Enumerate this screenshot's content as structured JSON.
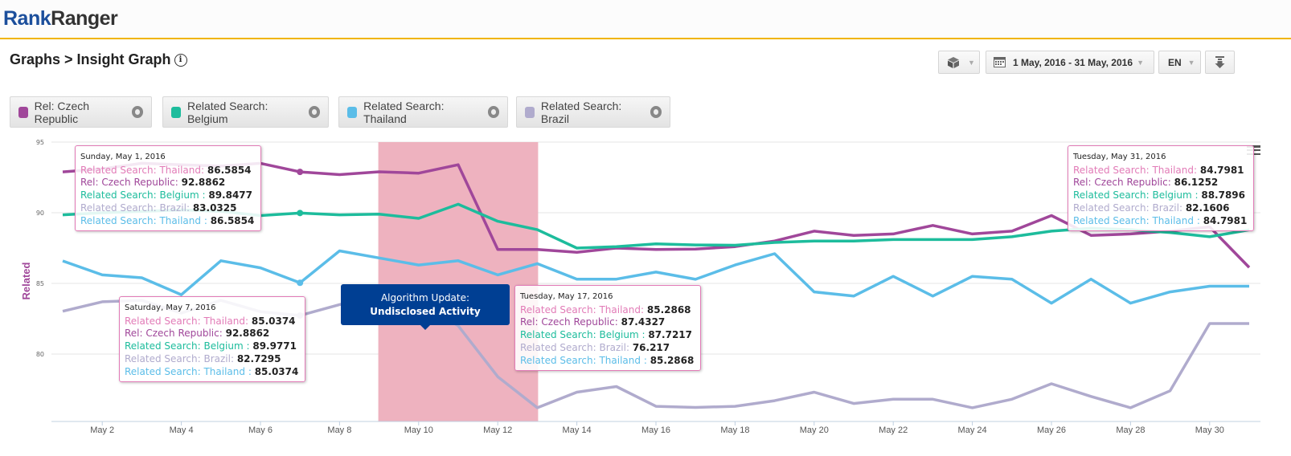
{
  "header": {
    "logo_part1": "Rank",
    "logo_part2": "Ranger"
  },
  "breadcrumb": {
    "text": "Graphs > Insight Graph",
    "info_icon": "info-icon"
  },
  "controls": {
    "widget_icon": "cube-icon",
    "date_icon": "calendar-icon",
    "date_range": "1 May, 2016 - 31 May, 2016",
    "language": "EN",
    "download_icon": "download-icon"
  },
  "legend": [
    {
      "label": "Rel: Czech Republic",
      "color": "#a0479a"
    },
    {
      "label": "Related Search: Belgium",
      "color": "#1dbc9c"
    },
    {
      "label": "Related Search: Thailand",
      "color": "#5bbde8"
    },
    {
      "label": "Related Search: Brazil",
      "color": "#b0abcd"
    }
  ],
  "annotation": {
    "line1": "Algorithm Update:",
    "line2": "Undisclosed Activity",
    "band_color": "#eeb2bf"
  },
  "tooltips": [
    {
      "date": "Sunday, May 1, 2016",
      "rows": [
        {
          "label": "Related Search: Thailand:",
          "value": "86.5854",
          "color": "#e27bb7"
        },
        {
          "label": "Rel: Czech Republic:",
          "value": "92.8862",
          "color": "#a0479a"
        },
        {
          "label": "Related Search: Belgium :",
          "value": "89.8477",
          "color": "#1dbc9c"
        },
        {
          "label": "Related Search: Brazil:",
          "value": "83.0325",
          "color": "#b0abcd"
        },
        {
          "label": "Related Search: Thailand :",
          "value": "86.5854",
          "color": "#5bbde8"
        }
      ]
    },
    {
      "date": "Saturday, May 7, 2016",
      "rows": [
        {
          "label": "Related Search: Thailand:",
          "value": "85.0374",
          "color": "#e27bb7"
        },
        {
          "label": "Rel: Czech Republic:",
          "value": "92.8862",
          "color": "#a0479a"
        },
        {
          "label": "Related Search: Belgium :",
          "value": "89.9771",
          "color": "#1dbc9c"
        },
        {
          "label": "Related Search: Brazil:",
          "value": "82.7295",
          "color": "#b0abcd"
        },
        {
          "label": "Related Search: Thailand :",
          "value": "85.0374",
          "color": "#5bbde8"
        }
      ]
    },
    {
      "date": "Tuesday, May 17, 2016",
      "rows": [
        {
          "label": "Related Search: Thailand:",
          "value": "85.2868",
          "color": "#e27bb7"
        },
        {
          "label": "Rel: Czech Republic:",
          "value": "87.4327",
          "color": "#a0479a"
        },
        {
          "label": "Related Search: Belgium :",
          "value": "87.7217",
          "color": "#1dbc9c"
        },
        {
          "label": "Related Search: Brazil:",
          "value": "76.217",
          "color": "#b0abcd"
        },
        {
          "label": "Related Search: Thailand :",
          "value": "85.2868",
          "color": "#5bbde8"
        }
      ]
    },
    {
      "date": "Tuesday, May 31, 2016",
      "rows": [
        {
          "label": "Related Search: Thailand:",
          "value": "84.7981",
          "color": "#e27bb7"
        },
        {
          "label": "Rel: Czech Republic:",
          "value": "86.1252",
          "color": "#a0479a"
        },
        {
          "label": "Related Search: Belgium :",
          "value": "88.7896",
          "color": "#1dbc9c"
        },
        {
          "label": "Related Search: Brazil:",
          "value": "82.1606",
          "color": "#b0abcd"
        },
        {
          "label": "Related Search: Thailand :",
          "value": "84.7981",
          "color": "#5bbde8"
        }
      ]
    }
  ],
  "chart_data": {
    "type": "line",
    "title": "Insight Graph",
    "xlabel": "",
    "ylabel": "Related",
    "ylim": [
      75.2,
      95
    ],
    "yticks": [
      80,
      85,
      90,
      95
    ],
    "x": [
      1,
      2,
      3,
      4,
      5,
      6,
      7,
      8,
      9,
      10,
      11,
      12,
      13,
      14,
      15,
      16,
      17,
      18,
      19,
      20,
      21,
      22,
      23,
      24,
      25,
      26,
      27,
      28,
      29,
      30,
      31
    ],
    "xticks": [
      {
        "day": 2,
        "label": "May 2"
      },
      {
        "day": 4,
        "label": "May 4"
      },
      {
        "day": 6,
        "label": "May 6"
      },
      {
        "day": 8,
        "label": "May 8"
      },
      {
        "day": 10,
        "label": "May 10"
      },
      {
        "day": 12,
        "label": "May 12"
      },
      {
        "day": 14,
        "label": "May 14"
      },
      {
        "day": 16,
        "label": "May 16"
      },
      {
        "day": 18,
        "label": "May 18"
      },
      {
        "day": 20,
        "label": "May 20"
      },
      {
        "day": 22,
        "label": "May 22"
      },
      {
        "day": 24,
        "label": "May 24"
      },
      {
        "day": 26,
        "label": "May 26"
      },
      {
        "day": 28,
        "label": "May 28"
      },
      {
        "day": 30,
        "label": "May 30"
      }
    ],
    "grid": true,
    "highlight_band": {
      "from_day": 9,
      "to_day": 13
    },
    "series": [
      {
        "name": "Rel: Czech Republic",
        "color": "#a0479a",
        "values": [
          92.89,
          93.1,
          93.5,
          93.4,
          93.3,
          93.5,
          92.89,
          92.7,
          92.9,
          92.8,
          93.4,
          87.4,
          87.4,
          87.2,
          87.5,
          87.4,
          87.43,
          87.6,
          88.0,
          88.7,
          88.4,
          88.5,
          89.1,
          88.5,
          88.7,
          89.8,
          88.4,
          88.5,
          88.7,
          89.0,
          86.13
        ]
      },
      {
        "name": "Related Search: Belgium",
        "color": "#1dbc9c",
        "values": [
          89.85,
          90.0,
          90.1,
          90.2,
          90.1,
          89.8,
          89.98,
          89.85,
          89.9,
          89.6,
          90.6,
          89.4,
          88.8,
          87.5,
          87.6,
          87.8,
          87.72,
          87.7,
          87.9,
          88.0,
          88.0,
          88.1,
          88.1,
          88.1,
          88.3,
          88.7,
          88.9,
          88.8,
          88.6,
          88.3,
          88.79
        ]
      },
      {
        "name": "Related Search: Thailand",
        "color": "#5bbde8",
        "values": [
          86.59,
          85.6,
          85.4,
          84.2,
          86.6,
          86.1,
          85.04,
          87.3,
          86.8,
          86.3,
          86.6,
          85.6,
          86.4,
          85.3,
          85.3,
          85.8,
          85.29,
          86.3,
          87.1,
          84.4,
          84.1,
          85.5,
          84.1,
          85.5,
          85.3,
          83.6,
          85.3,
          83.6,
          84.4,
          84.8,
          84.8
        ]
      },
      {
        "name": "Related Search: Brazil",
        "color": "#b0abcd",
        "values": [
          83.03,
          83.7,
          83.8,
          82.9,
          83.8,
          83.0,
          82.73,
          83.5,
          84.0,
          83.7,
          82.0,
          78.4,
          76.2,
          77.3,
          77.7,
          76.3,
          76.22,
          76.3,
          76.7,
          77.3,
          76.5,
          76.8,
          76.8,
          76.2,
          76.8,
          77.9,
          77.0,
          76.2,
          77.4,
          82.16,
          82.16
        ]
      }
    ],
    "markers": [
      {
        "series": 0,
        "day": 7
      },
      {
        "series": 1,
        "day": 7
      },
      {
        "series": 2,
        "day": 7
      },
      {
        "series": 3,
        "day": 7
      }
    ]
  }
}
